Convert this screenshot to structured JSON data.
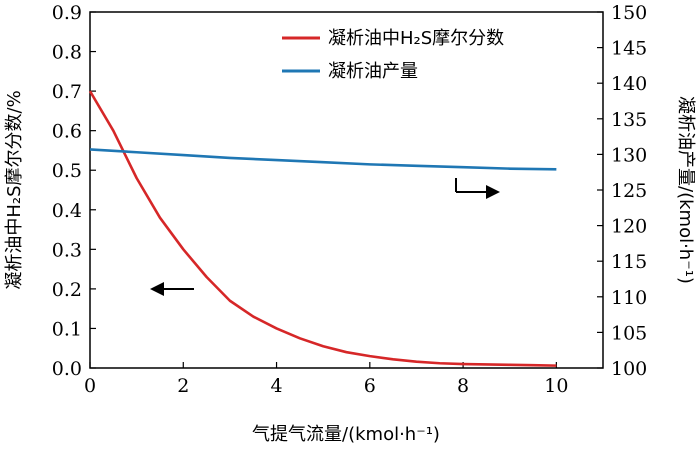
{
  "chart_data": {
    "type": "line",
    "xlabel": "气提气流量/(kmol·h⁻¹)",
    "ylabel_left": "凝析油中H₂S摩尔分数/%",
    "ylabel_right": "凝析油产量/(kmol·h⁻¹)",
    "xlim": [
      0,
      11
    ],
    "ylim_left": [
      0,
      0.9
    ],
    "ylim_right": [
      100,
      150
    ],
    "x_ticks": [
      "0",
      "2",
      "4",
      "6",
      "8",
      "10"
    ],
    "y_left_ticks": [
      "0.0",
      "0.1",
      "0.2",
      "0.3",
      "0.4",
      "0.5",
      "0.6",
      "0.7",
      "0.8",
      "0.9"
    ],
    "y_right_ticks": [
      "100",
      "105",
      "110",
      "115",
      "120",
      "125",
      "130",
      "135",
      "140",
      "145",
      "150"
    ],
    "grid": false,
    "legend_position": "top-right",
    "series": [
      {
        "name": "凝析油中H₂S摩尔分数",
        "axis": "left",
        "color": "#d62728",
        "x": [
          0,
          0.5,
          1,
          1.5,
          2,
          2.5,
          3,
          3.5,
          4,
          4.5,
          5,
          5.5,
          6,
          6.5,
          7,
          7.5,
          8,
          8.5,
          9,
          9.5,
          10
        ],
        "values": [
          0.7,
          0.6,
          0.48,
          0.38,
          0.3,
          0.23,
          0.17,
          0.13,
          0.1,
          0.075,
          0.055,
          0.04,
          0.03,
          0.022,
          0.016,
          0.012,
          0.01,
          0.009,
          0.008,
          0.007,
          0.006
        ]
      },
      {
        "name": "凝析油产量",
        "axis": "right",
        "color": "#1f77b4",
        "x": [
          0,
          1,
          2,
          3,
          4,
          5,
          6,
          7,
          8,
          9,
          10
        ],
        "values": [
          130.7,
          130.3,
          129.9,
          129.5,
          129.2,
          128.9,
          128.6,
          128.4,
          128.2,
          128.0,
          127.9
        ]
      }
    ],
    "annotations": [
      {
        "type": "arrow",
        "direction": "left",
        "points_to_axis": "left"
      },
      {
        "type": "arrow",
        "direction": "right",
        "points_to_axis": "right"
      }
    ]
  }
}
